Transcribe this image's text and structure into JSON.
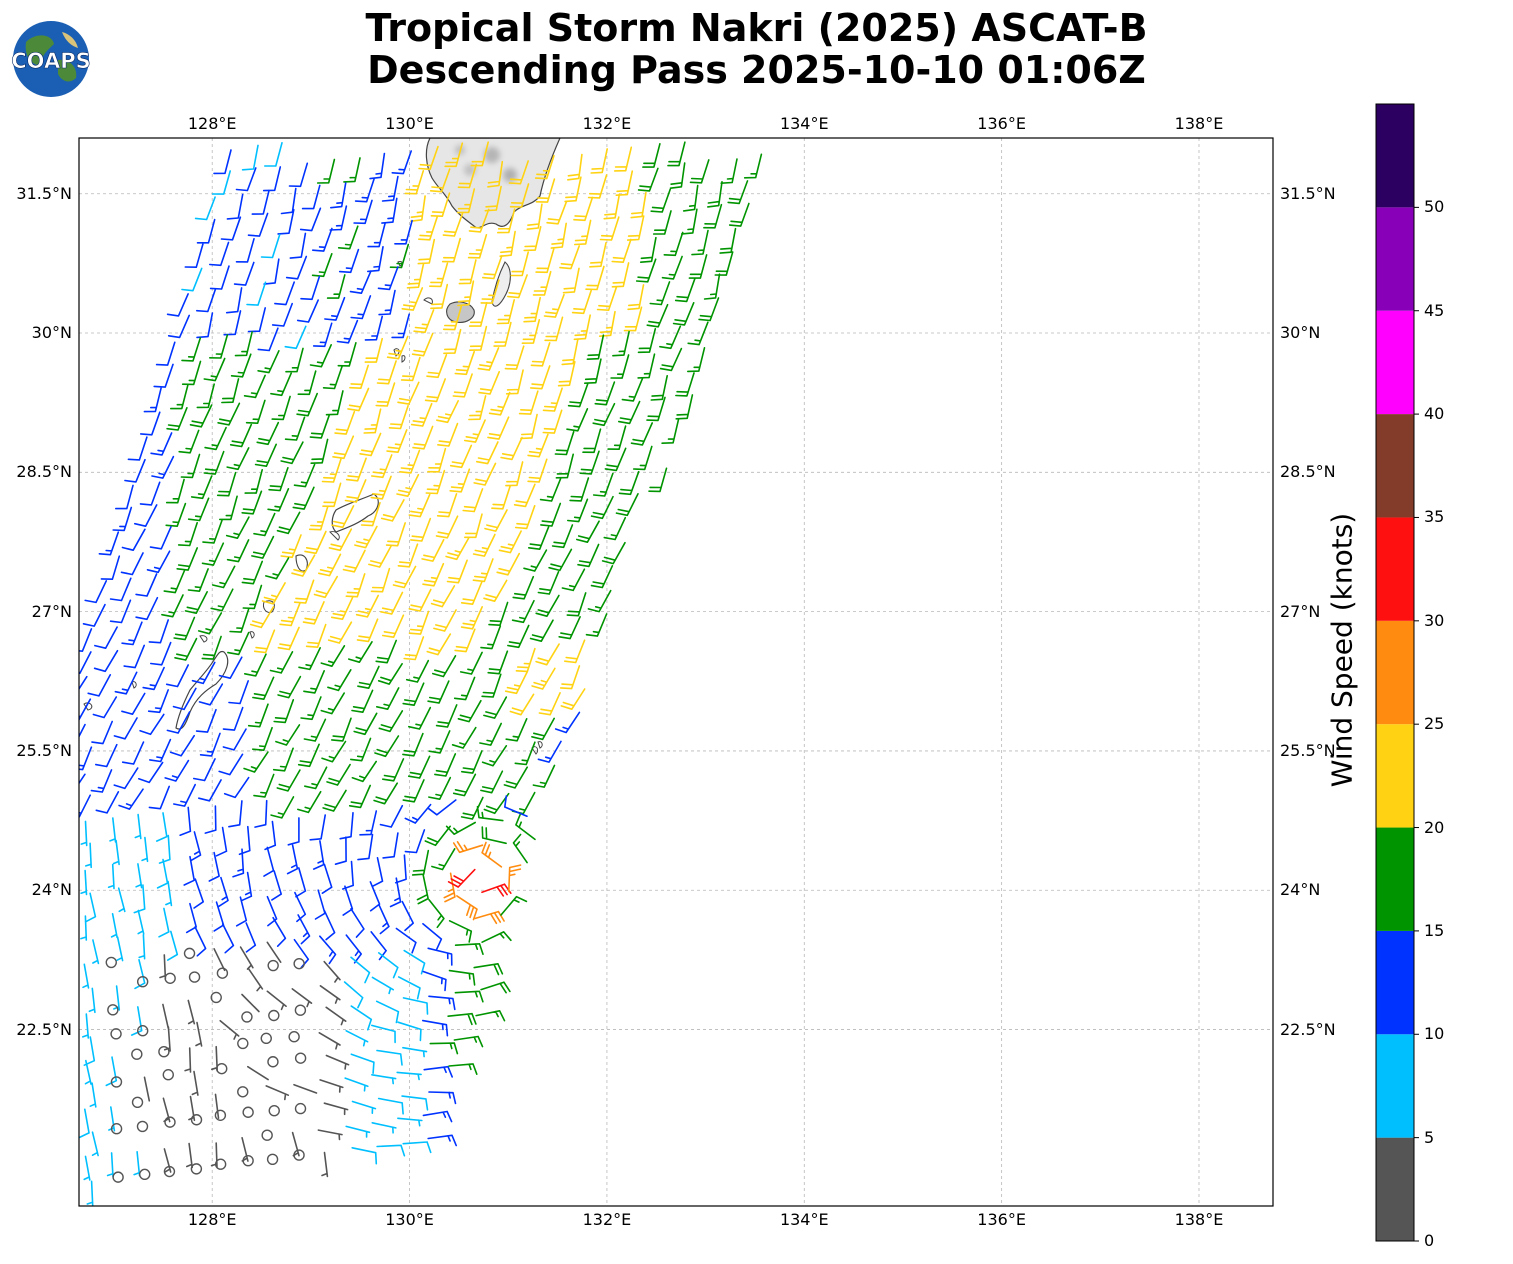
{
  "title": {
    "line1": "Tropical Storm Nakri (2025) ASCAT-B",
    "line2": "Descending Pass 2025-10-10 01:06Z"
  },
  "logo": {
    "text": "COAPS",
    "icon": "globe-logo-icon"
  },
  "map": {
    "lon_ticks": [
      "128°E",
      "130°E",
      "132°E",
      "134°E",
      "136°E",
      "138°E"
    ],
    "lat_ticks": [
      "31.5°N",
      "30°N",
      "28.5°N",
      "27°N",
      "25.5°N",
      "24°N",
      "22.5°N"
    ],
    "lon_values": [
      128,
      130,
      132,
      134,
      136,
      138
    ],
    "lat_values": [
      31.5,
      30,
      28.5,
      27,
      25.5,
      24,
      22.5
    ],
    "lon_range": [
      126.65,
      138.75
    ],
    "lat_range": [
      20.6,
      32.1
    ],
    "grid": true
  },
  "colorbar": {
    "label": "Wind Speed (knots)",
    "ticks": [
      "0",
      "5",
      "10",
      "15",
      "20",
      "25",
      "30",
      "35",
      "40",
      "45",
      "50"
    ],
    "bins": [
      {
        "min": 0,
        "max": 5,
        "color": "#555555"
      },
      {
        "min": 5,
        "max": 10,
        "color": "#00bfff"
      },
      {
        "min": 10,
        "max": 15,
        "color": "#0033ff"
      },
      {
        "min": 15,
        "max": 20,
        "color": "#009400"
      },
      {
        "min": 20,
        "max": 25,
        "color": "#ffd313"
      },
      {
        "min": 25,
        "max": 30,
        "color": "#ff8c10"
      },
      {
        "min": 30,
        "max": 35,
        "color": "#ff1010"
      },
      {
        "min": 35,
        "max": 40,
        "color": "#843c2a"
      },
      {
        "min": 40,
        "max": 45,
        "color": "#ff00ff"
      },
      {
        "min": 45,
        "max": 50,
        "color": "#8800b8"
      },
      {
        "min": 50,
        "max": 55,
        "color": "#2c0060"
      }
    ]
  }
}
